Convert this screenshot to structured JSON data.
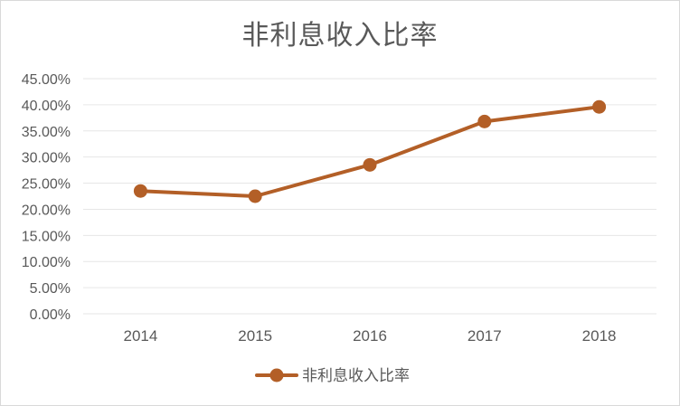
{
  "chart_data": {
    "type": "line",
    "title": "非利息收入比率",
    "categories": [
      "2014",
      "2015",
      "2016",
      "2017",
      "2018"
    ],
    "series": [
      {
        "name": "非利息收入比率",
        "values": [
          0.235,
          0.225,
          0.285,
          0.368,
          0.396
        ],
        "color": "#b35f27"
      }
    ],
    "ylim": [
      0,
      0.45
    ],
    "yticks": [
      "0.00%",
      "5.00%",
      "10.00%",
      "15.00%",
      "20.00%",
      "25.00%",
      "30.00%",
      "35.00%",
      "40.00%",
      "45.00%"
    ],
    "grid": true,
    "legend": "bottom"
  },
  "colors": {
    "series": "#b35f27",
    "grid": "#e6e6e6",
    "text": "#595959"
  }
}
